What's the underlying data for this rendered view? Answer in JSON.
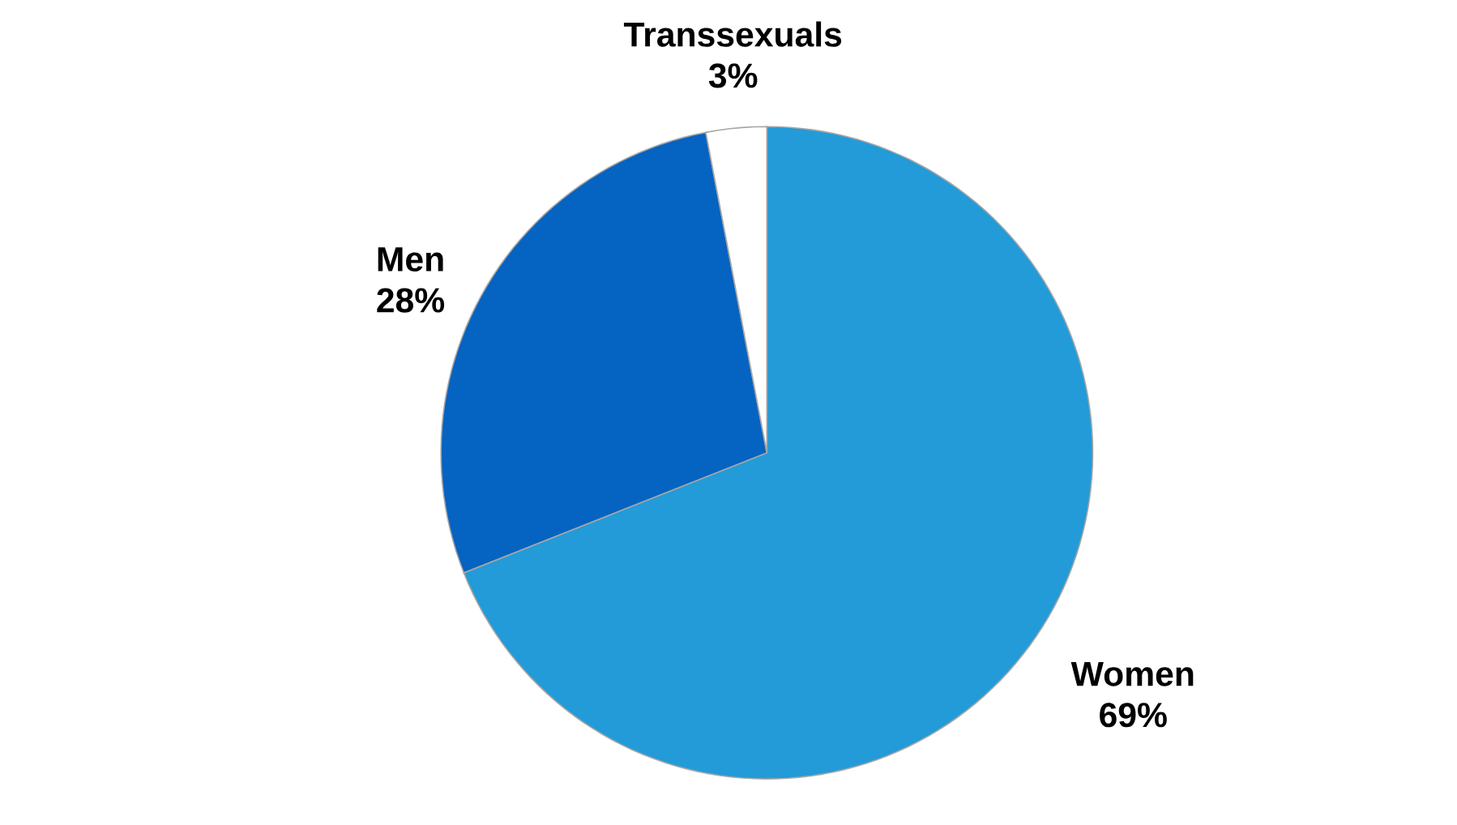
{
  "chart_data": {
    "type": "pie",
    "categories": [
      "Women",
      "Men",
      "Transsexuals"
    ],
    "values": [
      69,
      28,
      3
    ],
    "colors": [
      "#229bd8",
      "#0563c1",
      "#ffffff"
    ],
    "value_labels": [
      "69%",
      "28%",
      "3%"
    ]
  }
}
